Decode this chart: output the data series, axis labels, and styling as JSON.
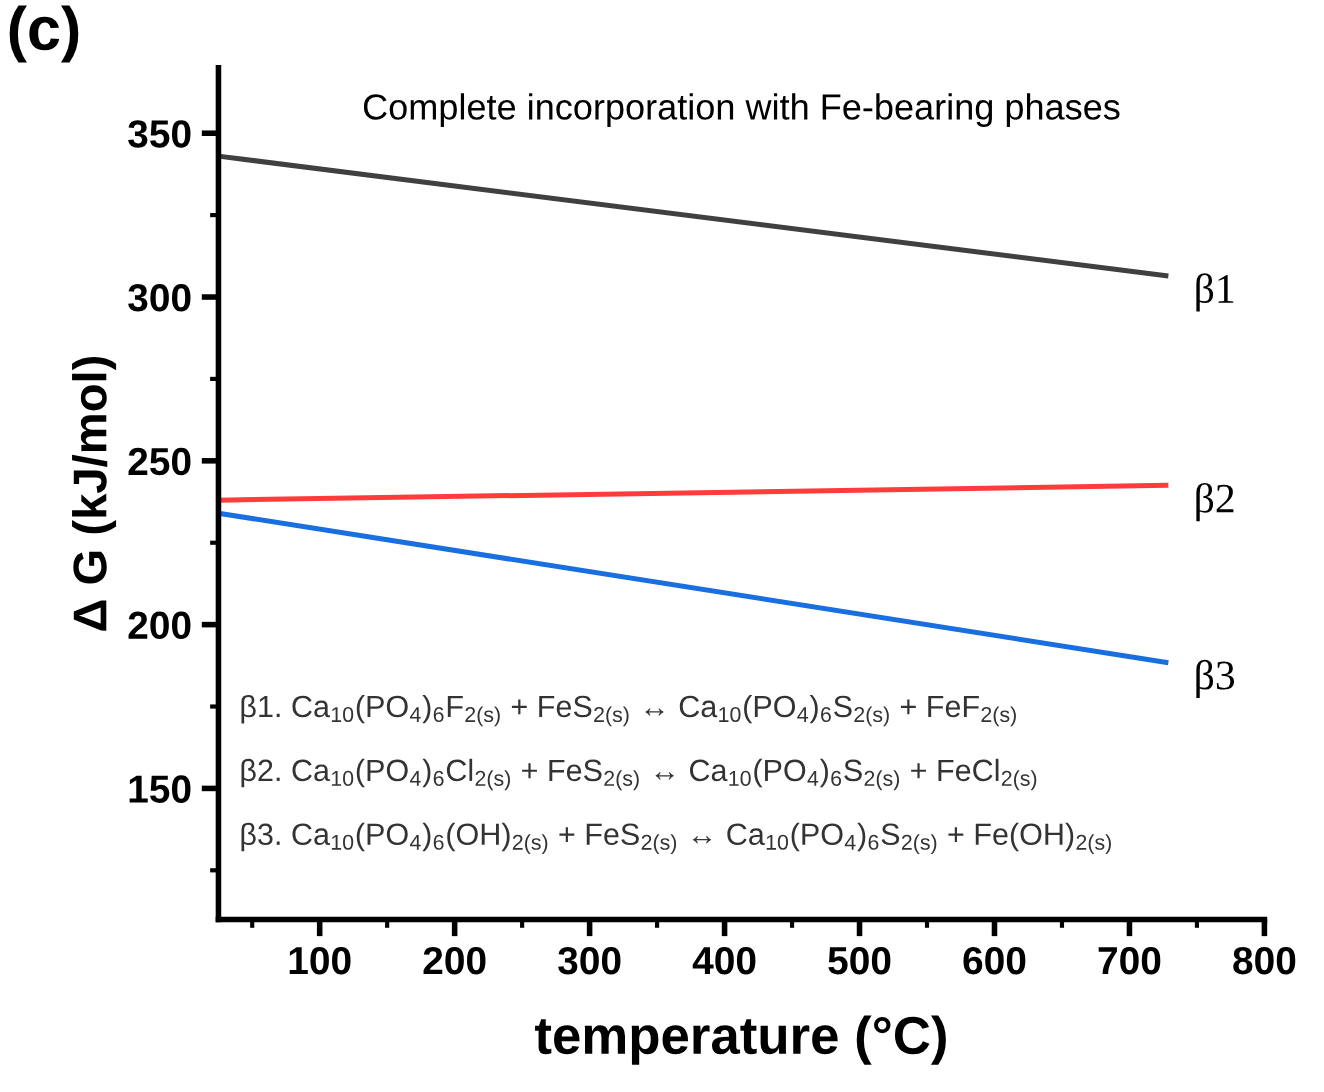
{
  "chart_data": {
    "type": "line",
    "title": "Complete incorporation with Fe-bearing phases",
    "xlabel": "temperature (°C)",
    "ylabel": "Δ G (kJ/mol)",
    "x": [
      25,
      727
    ],
    "series": [
      {
        "color": "#404040",
        "values": [
          343,
          306.5
        ]
      },
      {
        "color": "#ff3b3b",
        "values": [
          238,
          242.5
        ]
      },
      {
        "color": "#1a6fe0",
        "values": [
          234,
          188.5
        ]
      }
    ],
    "xlim": [
      25,
      800
    ],
    "ylim": [
      110,
      370
    ],
    "xticks": [
      100,
      200,
      300,
      400,
      500,
      600,
      700,
      800
    ],
    "yticks": [
      150,
      200,
      250,
      300,
      350
    ],
    "grid": false,
    "legend": false,
    "marker": "none",
    "line_style": "solid",
    "annotations": [
      "(c)",
      "β1",
      "β2",
      "β3",
      "β1. Ca$_{10}$(PO$_{4}$)$_{6}$F$_{2(s)}$ + FeS$_{2(s)}$ ↔ Ca$_{10}$(PO$_{4}$)$_{6}$S$_{2(s)}$ + FeF$_{2(s)}$",
      "β2. Ca$_{10}$(PO$_{4}$)$_{6}$Cl$_{2(s)}$ + FeS$_{2(s)}$ ↔ Ca$_{10}$(PO$_{4}$)$_{6}$S$_{2(s)}$ + FeCl$_{2(s)}$",
      "β3. Ca$_{10}$(PO$_{4}$)$_{6}$(OH)$_{2(s)}$ + FeS$_{2(s)}$ ↔ Ca$_{10}$(PO$_{4}$)$_{6}$S$_{2(s)}$ + Fe(OH)$_{2(s)}$"
    ]
  }
}
